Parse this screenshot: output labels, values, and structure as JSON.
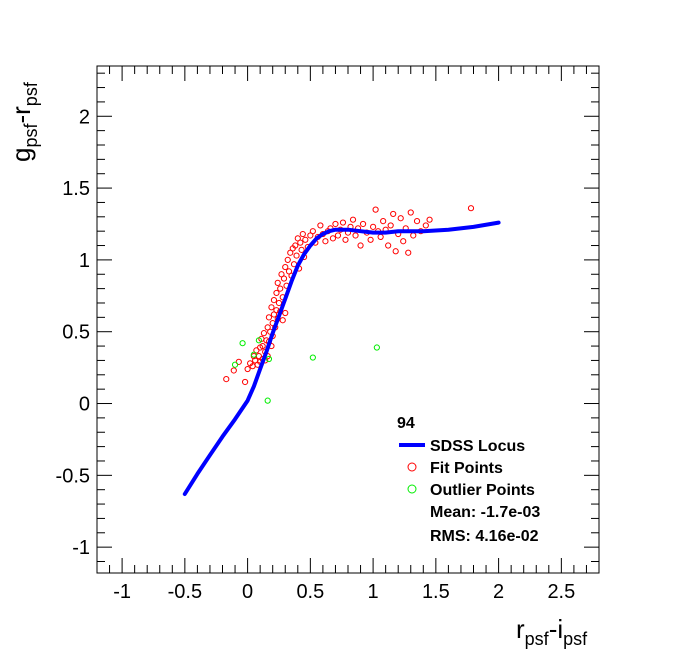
{
  "chart_data": {
    "type": "scatter",
    "title": "",
    "xlabel": {
      "main1": "r",
      "sub1": "psf",
      "sep": "-i",
      "sub2": "psf"
    },
    "ylabel": {
      "main1": "g",
      "sub1": "psf",
      "sep": "-r",
      "sub2": "psf"
    },
    "xlim": [
      -1.2,
      2.8
    ],
    "ylim": [
      -1.18,
      2.35
    ],
    "x_ticks": [
      -1,
      -0.5,
      0,
      0.5,
      1,
      1.5,
      2,
      2.5
    ],
    "x_tick_labels": [
      "-1",
      "-0.5",
      "0",
      "0.5",
      "1",
      "1.5",
      "2",
      "2.5"
    ],
    "y_ticks": [
      -1,
      -0.5,
      0,
      0.5,
      1,
      1.5,
      2
    ],
    "y_tick_labels": [
      "-1",
      "-0.5",
      "0",
      "0.5",
      "1",
      "1.5",
      "2"
    ],
    "grid": false,
    "legend_position": "bottom-right",
    "legend": {
      "header": "94",
      "entries": [
        "SDSS Locus",
        "Fit Points",
        "Outlier Points"
      ],
      "mean": "Mean: -1.7e-03",
      "rms": "RMS: 4.16e-02"
    },
    "colors": {
      "locus": "#0000ff",
      "fit": "#ff0000",
      "outlier": "#00ee00"
    },
    "series": [
      {
        "name": "SDSS Locus",
        "kind": "line",
        "x": [
          -0.5,
          -0.4,
          -0.3,
          -0.2,
          -0.1,
          0.0,
          0.05,
          0.1,
          0.15,
          0.2,
          0.25,
          0.3,
          0.35,
          0.4,
          0.45,
          0.5,
          0.55,
          0.6,
          0.65,
          0.7,
          0.75,
          0.8,
          0.9,
          1.0,
          1.1,
          1.2,
          1.4,
          1.6,
          1.8,
          2.0
        ],
        "y": [
          -0.63,
          -0.49,
          -0.36,
          -0.23,
          -0.11,
          0.02,
          0.12,
          0.24,
          0.36,
          0.49,
          0.61,
          0.73,
          0.85,
          0.96,
          1.04,
          1.1,
          1.15,
          1.18,
          1.2,
          1.21,
          1.21,
          1.21,
          1.2,
          1.19,
          1.19,
          1.2,
          1.2,
          1.21,
          1.23,
          1.26
        ]
      },
      {
        "name": "Fit Points",
        "kind": "points",
        "points": [
          [
            -0.17,
            0.17
          ],
          [
            -0.11,
            0.23
          ],
          [
            -0.07,
            0.29
          ],
          [
            -0.02,
            0.15
          ],
          [
            0.0,
            0.24
          ],
          [
            0.02,
            0.28
          ],
          [
            0.04,
            0.26
          ],
          [
            0.05,
            0.33
          ],
          [
            0.06,
            0.3
          ],
          [
            0.07,
            0.37
          ],
          [
            0.08,
            0.27
          ],
          [
            0.09,
            0.33
          ],
          [
            0.1,
            0.39
          ],
          [
            0.1,
            0.29
          ],
          [
            0.11,
            0.45
          ],
          [
            0.12,
            0.31
          ],
          [
            0.12,
            0.4
          ],
          [
            0.13,
            0.49
          ],
          [
            0.14,
            0.36
          ],
          [
            0.14,
            0.3
          ],
          [
            0.15,
            0.44
          ],
          [
            0.16,
            0.53
          ],
          [
            0.16,
            0.33
          ],
          [
            0.17,
            0.43
          ],
          [
            0.17,
            0.6
          ],
          [
            0.18,
            0.5
          ],
          [
            0.19,
            0.4
          ],
          [
            0.19,
            0.67
          ],
          [
            0.2,
            0.56
          ],
          [
            0.2,
            0.47
          ],
          [
            0.21,
            0.62
          ],
          [
            0.21,
            0.72
          ],
          [
            0.22,
            0.53
          ],
          [
            0.23,
            0.65
          ],
          [
            0.23,
            0.77
          ],
          [
            0.24,
            0.59
          ],
          [
            0.24,
            0.84
          ],
          [
            0.25,
            0.7
          ],
          [
            0.26,
            0.64
          ],
          [
            0.26,
            0.8
          ],
          [
            0.27,
            0.9
          ],
          [
            0.28,
            0.74
          ],
          [
            0.28,
            0.58
          ],
          [
            0.29,
            0.87
          ],
          [
            0.3,
            0.95
          ],
          [
            0.3,
            0.63
          ],
          [
            0.31,
            0.82
          ],
          [
            0.32,
            1.0
          ],
          [
            0.33,
            0.92
          ],
          [
            0.34,
            1.05
          ],
          [
            0.35,
            0.89
          ],
          [
            0.36,
            1.08
          ],
          [
            0.37,
            0.97
          ],
          [
            0.38,
            1.1
          ],
          [
            0.39,
            1.03
          ],
          [
            0.4,
            1.15
          ],
          [
            0.41,
            0.94
          ],
          [
            0.42,
            1.12
          ],
          [
            0.43,
            1.07
          ],
          [
            0.44,
            1.18
          ],
          [
            0.45,
            1.02
          ],
          [
            0.46,
            1.14
          ],
          [
            0.48,
            1.09
          ],
          [
            0.5,
            1.17
          ],
          [
            0.52,
            1.2
          ],
          [
            0.54,
            1.12
          ],
          [
            0.56,
            1.16
          ],
          [
            0.58,
            1.24
          ],
          [
            0.6,
            1.18
          ],
          [
            0.62,
            1.13
          ],
          [
            0.64,
            1.2
          ],
          [
            0.66,
            1.22
          ],
          [
            0.68,
            1.15
          ],
          [
            0.7,
            1.25
          ],
          [
            0.72,
            1.17
          ],
          [
            0.74,
            1.21
          ],
          [
            0.76,
            1.26
          ],
          [
            0.78,
            1.14
          ],
          [
            0.8,
            1.19
          ],
          [
            0.82,
            1.23
          ],
          [
            0.84,
            1.28
          ],
          [
            0.86,
            1.17
          ],
          [
            0.88,
            1.22
          ],
          [
            0.9,
            1.1
          ],
          [
            0.92,
            1.25
          ],
          [
            0.95,
            1.19
          ],
          [
            0.98,
            1.14
          ],
          [
            1.0,
            1.23
          ],
          [
            1.02,
            1.35
          ],
          [
            1.04,
            1.2
          ],
          [
            1.06,
            1.16
          ],
          [
            1.08,
            1.27
          ],
          [
            1.1,
            1.21
          ],
          [
            1.12,
            1.1
          ],
          [
            1.14,
            1.24
          ],
          [
            1.16,
            1.32
          ],
          [
            1.18,
            1.06
          ],
          [
            1.2,
            1.18
          ],
          [
            1.22,
            1.29
          ],
          [
            1.24,
            1.13
          ],
          [
            1.26,
            1.22
          ],
          [
            1.28,
            1.05
          ],
          [
            1.3,
            1.33
          ],
          [
            1.32,
            1.17
          ],
          [
            1.35,
            1.27
          ],
          [
            1.38,
            1.2
          ],
          [
            1.42,
            1.24
          ],
          [
            1.45,
            1.28
          ],
          [
            1.78,
            1.36
          ]
        ]
      },
      {
        "name": "Outlier Points",
        "kind": "points",
        "points": [
          [
            -0.04,
            0.42
          ],
          [
            -0.1,
            0.27
          ],
          [
            0.05,
            0.34
          ],
          [
            0.09,
            0.44
          ],
          [
            0.17,
            0.31
          ],
          [
            0.16,
            0.02
          ],
          [
            0.52,
            0.32
          ],
          [
            1.03,
            0.39
          ]
        ]
      }
    ]
  }
}
